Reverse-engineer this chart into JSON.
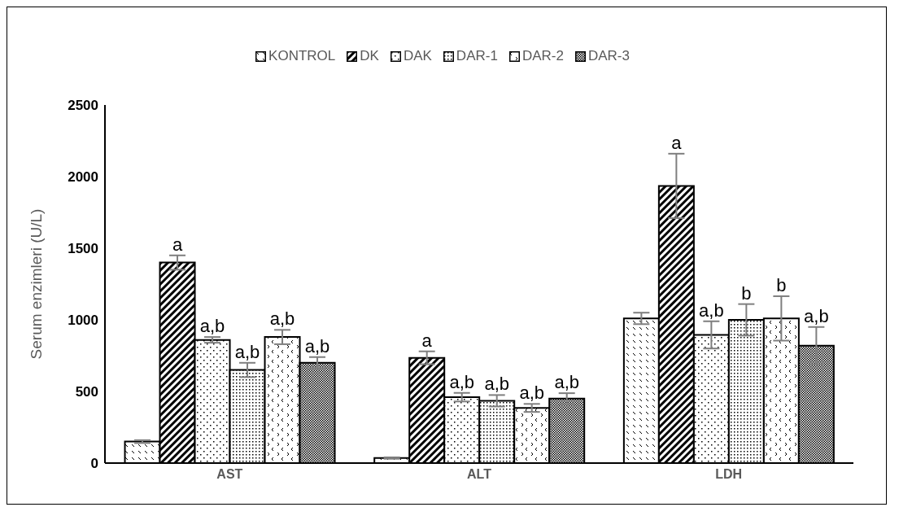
{
  "chart_data": {
    "type": "bar",
    "ylabel": "Serum enzimleri (U/L)",
    "categories": [
      "AST",
      "ALT",
      "LDH"
    ],
    "series": [
      {
        "name": "KONTROL",
        "color": "#000000",
        "values": [
          150,
          35,
          1010
        ],
        "errors": [
          10,
          5,
          40
        ]
      },
      {
        "name": "DK",
        "color": "#000000",
        "values": [
          1400,
          735,
          1935
        ],
        "errors": [
          50,
          45,
          225
        ],
        "value_labels": [
          "a",
          "a",
          "a"
        ]
      },
      {
        "name": "DAK",
        "color": "#000000",
        "values": [
          860,
          460,
          895
        ],
        "errors": [
          20,
          30,
          95
        ],
        "value_labels": [
          "a,b",
          "a,b",
          "a,b"
        ]
      },
      {
        "name": "DAR-1",
        "color": "#000000",
        "values": [
          650,
          435,
          1000
        ],
        "errors": [
          50,
          40,
          110
        ],
        "value_labels": [
          "a,b",
          "a,b",
          "b"
        ]
      },
      {
        "name": "DAR-2",
        "color": "#000000",
        "values": [
          880,
          385,
          1010
        ],
        "errors": [
          50,
          28,
          155
        ],
        "value_labels": [
          "a,b",
          "a,b",
          "b"
        ]
      },
      {
        "name": "DAR-3",
        "color": "#000000",
        "values": [
          700,
          450,
          820
        ],
        "errors": [
          40,
          38,
          130
        ],
        "value_labels": [
          "a,b",
          "a,b",
          "a,b"
        ]
      }
    ],
    "ylim": [
      0,
      2500
    ],
    "yticks": [
      0,
      500,
      1000,
      1500,
      2000,
      2500
    ],
    "legend": "top"
  }
}
